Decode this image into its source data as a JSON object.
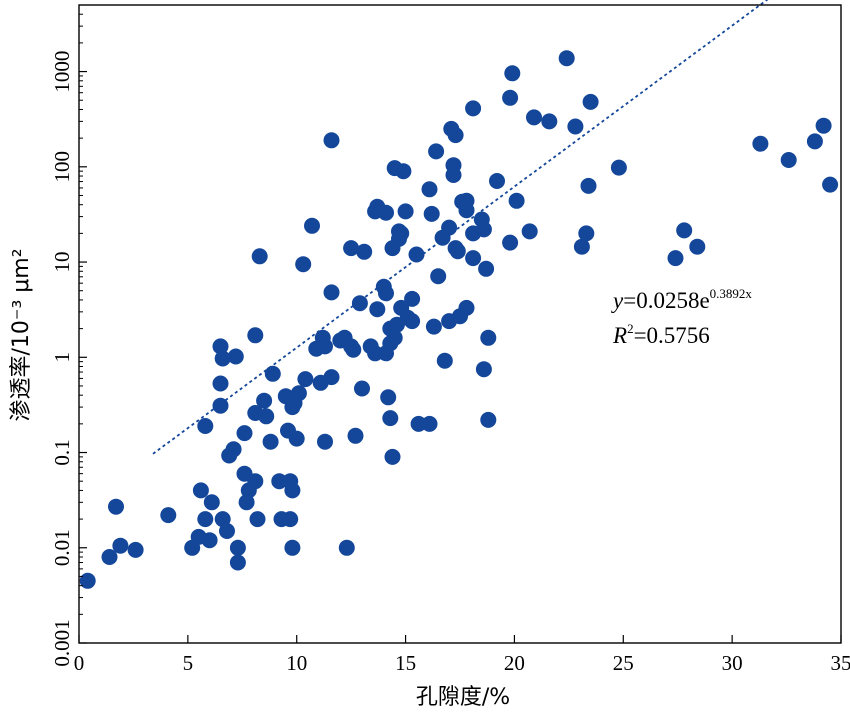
{
  "chart_data": {
    "type": "scatter",
    "xlabel": "孔隙度/%",
    "ylabel": "渗透率/10⁻³ μm²",
    "xlim": [
      0,
      35
    ],
    "ylim": [
      0.001,
      5000
    ],
    "yscale": "log",
    "xticks": [
      0,
      5,
      10,
      15,
      20,
      25,
      30,
      35
    ],
    "xtick_labels": [
      "0",
      "5",
      "10",
      "15",
      "20",
      "25",
      "30",
      "35"
    ],
    "yticks": [
      0.001,
      0.01,
      0.1,
      1,
      10,
      100,
      1000
    ],
    "ytick_labels": [
      "0.001",
      "0.01",
      "0.1",
      "1",
      "10",
      "100",
      "1000"
    ],
    "grid": false,
    "marker_color": "#14479a",
    "trendline": {
      "a": 0.0258,
      "b": 0.3892,
      "x_range": [
        3.4,
        32.8
      ],
      "style": "dotted",
      "color": "#14479a",
      "equation": {
        "y_var": "y",
        "coef": "=0.0258e",
        "exponent": "0.3892x",
        "r_var": "R",
        "r_sup": "2",
        "r_value": "=0.5756"
      }
    },
    "points": [
      [
        0.4,
        0.0045
      ],
      [
        1.4,
        0.008
      ],
      [
        1.7,
        0.027
      ],
      [
        1.9,
        0.0105
      ],
      [
        2.6,
        0.0095
      ],
      [
        4.1,
        0.022
      ],
      [
        5.2,
        0.01
      ],
      [
        5.5,
        0.013
      ],
      [
        5.6,
        0.04
      ],
      [
        5.8,
        0.02
      ],
      [
        6.0,
        0.012
      ],
      [
        6.1,
        0.03
      ],
      [
        5.8,
        0.19
      ],
      [
        6.5,
        0.31
      ],
      [
        6.5,
        0.53
      ],
      [
        6.6,
        0.97
      ],
      [
        6.5,
        1.3
      ],
      [
        7.2,
        1.02
      ],
      [
        6.6,
        0.02
      ],
      [
        6.8,
        0.015
      ],
      [
        6.9,
        0.093
      ],
      [
        7.1,
        0.108
      ],
      [
        7.3,
        0.007
      ],
      [
        7.3,
        0.01
      ],
      [
        7.6,
        0.16
      ],
      [
        7.6,
        0.06
      ],
      [
        7.7,
        0.03
      ],
      [
        7.8,
        0.04
      ],
      [
        8.1,
        0.05
      ],
      [
        8.1,
        0.26
      ],
      [
        8.1,
        1.7
      ],
      [
        8.2,
        0.02
      ],
      [
        8.3,
        11.5
      ],
      [
        8.5,
        0.35
      ],
      [
        8.6,
        0.24
      ],
      [
        8.8,
        0.13
      ],
      [
        8.9,
        0.67
      ],
      [
        9.2,
        0.05
      ],
      [
        9.3,
        0.02
      ],
      [
        9.5,
        0.39
      ],
      [
        9.6,
        0.17
      ],
      [
        9.7,
        0.02
      ],
      [
        9.7,
        0.05
      ],
      [
        9.8,
        0.04
      ],
      [
        9.8,
        0.01
      ],
      [
        9.8,
        0.3
      ],
      [
        9.9,
        0.33
      ],
      [
        10.0,
        0.14
      ],
      [
        10.1,
        0.42
      ],
      [
        10.3,
        9.5
      ],
      [
        10.4,
        0.59
      ],
      [
        10.7,
        24
      ],
      [
        10.9,
        1.23
      ],
      [
        11.1,
        0.54
      ],
      [
        11.2,
        1.6
      ],
      [
        11.3,
        1.3
      ],
      [
        11.3,
        0.13
      ],
      [
        11.6,
        4.8
      ],
      [
        11.6,
        0.62
      ],
      [
        11.6,
        190
      ],
      [
        12.0,
        1.5
      ],
      [
        12.2,
        1.6
      ],
      [
        12.3,
        0.01
      ],
      [
        12.5,
        14
      ],
      [
        12.5,
        1.3
      ],
      [
        12.6,
        1.2
      ],
      [
        12.7,
        0.15
      ],
      [
        12.9,
        3.7
      ],
      [
        13.0,
        0.47
      ],
      [
        13.1,
        12.8
      ],
      [
        13.4,
        1.3
      ],
      [
        13.6,
        1.1
      ],
      [
        13.6,
        34
      ],
      [
        13.7,
        3.2
      ],
      [
        13.7,
        38
      ],
      [
        14.0,
        5.5
      ],
      [
        14.1,
        4.7
      ],
      [
        14.1,
        1.1
      ],
      [
        14.1,
        33
      ],
      [
        14.2,
        0.38
      ],
      [
        14.3,
        0.23
      ],
      [
        14.3,
        1.4
      ],
      [
        14.3,
        2.0
      ],
      [
        14.4,
        0.09
      ],
      [
        14.4,
        14
      ],
      [
        14.5,
        97
      ],
      [
        14.5,
        1.6
      ],
      [
        14.6,
        2.2
      ],
      [
        14.7,
        21
      ],
      [
        14.7,
        17.5
      ],
      [
        14.8,
        20
      ],
      [
        14.8,
        3.3
      ],
      [
        14.9,
        90
      ],
      [
        15.0,
        34
      ],
      [
        15.1,
        2.6
      ],
      [
        15.3,
        2.4
      ],
      [
        15.3,
        4.1
      ],
      [
        15.5,
        12
      ],
      [
        15.6,
        0.2
      ],
      [
        16.1,
        0.2
      ],
      [
        16.1,
        58
      ],
      [
        16.2,
        32
      ],
      [
        16.3,
        2.1
      ],
      [
        16.4,
        145
      ],
      [
        16.5,
        7.1
      ],
      [
        16.7,
        18
      ],
      [
        16.8,
        0.92
      ],
      [
        17.0,
        2.4
      ],
      [
        17.0,
        23
      ],
      [
        17.1,
        250
      ],
      [
        17.2,
        104
      ],
      [
        17.2,
        82
      ],
      [
        17.3,
        14
      ],
      [
        17.3,
        215
      ],
      [
        17.4,
        13
      ],
      [
        17.5,
        2.7
      ],
      [
        17.6,
        43
      ],
      [
        17.8,
        44
      ],
      [
        17.8,
        3.3
      ],
      [
        17.8,
        35
      ],
      [
        18.1,
        11
      ],
      [
        18.1,
        20
      ],
      [
        18.1,
        410
      ],
      [
        18.5,
        28
      ],
      [
        18.6,
        0.75
      ],
      [
        18.6,
        22
      ],
      [
        18.7,
        8.5
      ],
      [
        18.8,
        1.6
      ],
      [
        18.8,
        0.22
      ],
      [
        19.2,
        71
      ],
      [
        19.8,
        16
      ],
      [
        19.8,
        530
      ],
      [
        19.9,
        960
      ],
      [
        20.1,
        44
      ],
      [
        20.7,
        21
      ],
      [
        20.9,
        330
      ],
      [
        21.6,
        300
      ],
      [
        22.4,
        1380
      ],
      [
        22.8,
        265
      ],
      [
        23.1,
        14.5
      ],
      [
        23.3,
        20
      ],
      [
        23.4,
        63
      ],
      [
        23.5,
        480
      ],
      [
        24.8,
        98
      ],
      [
        27.4,
        11
      ],
      [
        27.8,
        21.5
      ],
      [
        28.4,
        14.5
      ],
      [
        31.3,
        175
      ],
      [
        32.6,
        118
      ],
      [
        33.8,
        185
      ],
      [
        34.2,
        270
      ],
      [
        34.5,
        65
      ]
    ]
  }
}
